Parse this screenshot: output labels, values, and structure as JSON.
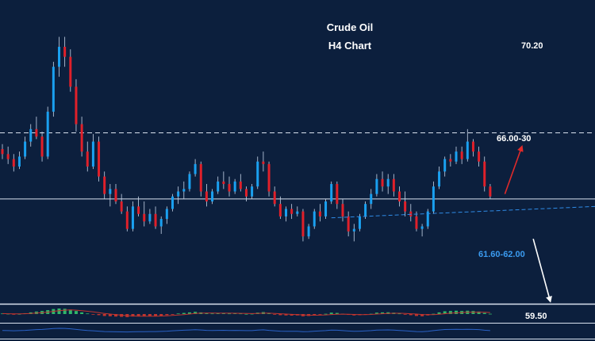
{
  "chart_data": {
    "type": "candlestick",
    "title": "Crude Oil",
    "subtitle": "H4 Chart",
    "colors": {
      "background": "#0c1f3d",
      "bullish": "#1aa0f0",
      "bearish": "#e0202a",
      "wick": "#c8d6ea",
      "reference_line": "#d9e2ef",
      "trendline": "#2f8be6",
      "arrow_up": "#e02a2a",
      "arrow_down": "#ffffff",
      "text": "#ffffff",
      "support_text": "#3b9bf0",
      "osc_green": "#2fb66a",
      "osc_red": "#c0352f",
      "osc_line": "#2a62c7"
    },
    "y_range": [
      59.3,
      71.0
    ],
    "levels": [
      {
        "label": "70.20",
        "value": 70.2,
        "line": false
      },
      {
        "label": "66.00-30",
        "value": 66.15,
        "line": true,
        "style": "dashed"
      },
      {
        "label": "",
        "value": 63.5,
        "line": true,
        "style": "solid"
      },
      {
        "label": "59.50",
        "value": 59.5,
        "line": false
      }
    ],
    "support_label": "61.60-62.00",
    "trendline": {
      "from": [
        0,
        62.1
      ],
      "to": [
        99,
        63.2
      ]
    },
    "arrows": [
      {
        "direction": "up",
        "from": [
          76,
          63.7
        ],
        "to": [
          79,
          65.6
        ]
      },
      {
        "direction": "down",
        "from": [
          81,
          61.9
        ],
        "to": [
          84,
          59.4
        ]
      }
    ],
    "candles": [
      [
        65.5,
        65.7,
        65.1,
        65.3
      ],
      [
        65.3,
        65.6,
        64.9,
        65.1
      ],
      [
        65.1,
        65.3,
        64.6,
        64.8
      ],
      [
        64.8,
        65.4,
        64.7,
        65.2
      ],
      [
        65.2,
        66.0,
        65.1,
        65.8
      ],
      [
        65.8,
        66.5,
        65.6,
        66.3
      ],
      [
        66.3,
        66.8,
        65.9,
        66.0
      ],
      [
        66.0,
        66.2,
        65.0,
        65.2
      ],
      [
        65.2,
        67.2,
        65.1,
        67.0
      ],
      [
        67.0,
        69.0,
        66.8,
        68.8
      ],
      [
        68.8,
        70.0,
        68.4,
        69.6
      ],
      [
        69.6,
        70.0,
        68.8,
        69.2
      ],
      [
        69.2,
        69.5,
        67.8,
        68.0
      ],
      [
        68.0,
        68.3,
        66.2,
        66.5
      ],
      [
        66.5,
        66.8,
        65.2,
        65.4
      ],
      [
        65.4,
        65.8,
        64.6,
        64.8
      ],
      [
        64.8,
        66.1,
        64.7,
        65.8
      ],
      [
        65.8,
        66.0,
        64.2,
        64.4
      ],
      [
        64.4,
        64.6,
        63.5,
        63.7
      ],
      [
        63.7,
        64.1,
        63.2,
        63.9
      ],
      [
        63.9,
        64.1,
        63.3,
        63.4
      ],
      [
        63.4,
        63.7,
        62.9,
        63.0
      ],
      [
        63.0,
        63.2,
        62.2,
        62.3
      ],
      [
        62.3,
        63.4,
        62.2,
        63.2
      ],
      [
        63.2,
        63.6,
        62.8,
        62.9
      ],
      [
        62.9,
        63.4,
        62.4,
        62.6
      ],
      [
        62.6,
        63.1,
        62.5,
        62.9
      ],
      [
        62.9,
        63.2,
        62.3,
        62.4
      ],
      [
        62.4,
        62.8,
        62.1,
        62.7
      ],
      [
        62.7,
        63.2,
        62.5,
        63.1
      ],
      [
        63.1,
        63.7,
        63.0,
        63.6
      ],
      [
        63.6,
        64.0,
        63.3,
        63.8
      ],
      [
        63.8,
        64.2,
        63.5,
        63.9
      ],
      [
        63.9,
        64.6,
        63.8,
        64.5
      ],
      [
        64.5,
        65.1,
        64.4,
        64.9
      ],
      [
        64.9,
        65.0,
        63.6,
        63.8
      ],
      [
        63.8,
        64.1,
        63.2,
        63.4
      ],
      [
        63.4,
        63.9,
        63.3,
        63.8
      ],
      [
        63.8,
        64.4,
        63.7,
        64.2
      ],
      [
        64.2,
        64.6,
        63.9,
        64.1
      ],
      [
        64.1,
        64.4,
        63.6,
        63.8
      ],
      [
        63.8,
        64.3,
        63.7,
        64.2
      ],
      [
        64.2,
        64.5,
        63.8,
        63.9
      ],
      [
        63.9,
        64.0,
        63.4,
        63.6
      ],
      [
        63.6,
        64.1,
        63.5,
        64.0
      ],
      [
        64.0,
        65.2,
        63.9,
        65.0
      ],
      [
        65.0,
        65.4,
        64.6,
        64.9
      ],
      [
        64.9,
        65.0,
        63.6,
        63.8
      ],
      [
        63.8,
        64.0,
        63.2,
        63.3
      ],
      [
        63.3,
        63.6,
        62.7,
        62.8
      ],
      [
        62.8,
        63.2,
        62.6,
        63.1
      ],
      [
        63.1,
        63.3,
        62.7,
        62.9
      ],
      [
        62.9,
        63.2,
        62.8,
        63.0
      ],
      [
        63.0,
        63.1,
        61.8,
        62.0
      ],
      [
        62.0,
        62.5,
        61.9,
        62.4
      ],
      [
        62.4,
        63.1,
        62.3,
        63.0
      ],
      [
        63.0,
        63.3,
        62.6,
        62.8
      ],
      [
        62.8,
        63.5,
        62.7,
        63.4
      ],
      [
        63.4,
        64.2,
        63.3,
        64.1
      ],
      [
        64.1,
        64.2,
        63.1,
        63.3
      ],
      [
        63.3,
        63.5,
        62.6,
        62.8
      ],
      [
        62.8,
        63.0,
        62.0,
        62.2
      ],
      [
        62.2,
        62.5,
        61.8,
        62.3
      ],
      [
        62.3,
        62.9,
        62.2,
        62.8
      ],
      [
        62.8,
        63.4,
        62.7,
        63.3
      ],
      [
        63.3,
        63.9,
        63.1,
        63.7
      ],
      [
        63.7,
        64.5,
        63.6,
        64.3
      ],
      [
        64.3,
        64.6,
        63.8,
        64.0
      ],
      [
        64.0,
        64.5,
        63.7,
        64.3
      ],
      [
        64.3,
        64.5,
        63.6,
        63.8
      ],
      [
        63.8,
        64.0,
        63.2,
        63.4
      ],
      [
        63.4,
        63.8,
        62.8,
        63.0
      ],
      [
        63.0,
        63.3,
        62.6,
        62.8
      ],
      [
        62.8,
        63.0,
        62.2,
        62.3
      ],
      [
        62.3,
        62.5,
        62.0,
        62.4
      ],
      [
        62.4,
        63.1,
        62.3,
        63.0
      ],
      [
        63.0,
        64.2,
        62.9,
        64.0
      ],
      [
        64.0,
        64.8,
        63.9,
        64.6
      ],
      [
        64.6,
        65.2,
        64.4,
        65.1
      ],
      [
        65.1,
        65.3,
        64.8,
        65.0
      ],
      [
        65.0,
        65.6,
        64.9,
        65.4
      ],
      [
        65.4,
        65.6,
        64.9,
        65.1
      ],
      [
        65.1,
        66.3,
        65.0,
        65.8
      ],
      [
        65.8,
        65.9,
        65.2,
        65.4
      ],
      [
        65.4,
        65.6,
        64.8,
        65.0
      ],
      [
        65.0,
        65.2,
        63.8,
        64.0
      ],
      [
        64.0,
        64.1,
        63.5,
        63.6
      ]
    ],
    "oscillator": [
      [
        0.1,
        0.08
      ],
      [
        0.05,
        0.06
      ],
      [
        -0.05,
        0.04
      ],
      [
        0.02,
        0.03
      ],
      [
        0.15,
        0.05
      ],
      [
        0.3,
        0.1
      ],
      [
        0.45,
        0.18
      ],
      [
        0.55,
        0.26
      ],
      [
        0.7,
        0.35
      ],
      [
        0.9,
        0.48
      ],
      [
        1.0,
        0.6
      ],
      [
        0.95,
        0.7
      ],
      [
        0.8,
        0.74
      ],
      [
        0.55,
        0.7
      ],
      [
        0.3,
        0.62
      ],
      [
        0.1,
        0.5
      ],
      [
        -0.05,
        0.38
      ],
      [
        -0.2,
        0.25
      ],
      [
        -0.35,
        0.12
      ],
      [
        -0.4,
        0.0
      ],
      [
        -0.45,
        -0.1
      ],
      [
        -0.5,
        -0.2
      ],
      [
        -0.55,
        -0.3
      ],
      [
        -0.45,
        -0.35
      ],
      [
        -0.4,
        -0.38
      ],
      [
        -0.4,
        -0.4
      ],
      [
        -0.35,
        -0.4
      ],
      [
        -0.35,
        -0.38
      ],
      [
        -0.3,
        -0.36
      ],
      [
        -0.2,
        -0.32
      ],
      [
        -0.05,
        -0.26
      ],
      [
        0.1,
        -0.18
      ],
      [
        0.2,
        -0.1
      ],
      [
        0.3,
        0.0
      ],
      [
        0.4,
        0.1
      ],
      [
        0.3,
        0.16
      ],
      [
        0.15,
        0.18
      ],
      [
        0.1,
        0.17
      ],
      [
        0.15,
        0.16
      ],
      [
        0.18,
        0.16
      ],
      [
        0.1,
        0.15
      ],
      [
        0.12,
        0.14
      ],
      [
        0.1,
        0.13
      ],
      [
        0.02,
        0.11
      ],
      [
        0.05,
        0.09
      ],
      [
        0.25,
        0.11
      ],
      [
        0.35,
        0.15
      ],
      [
        0.15,
        0.16
      ],
      [
        -0.05,
        0.12
      ],
      [
        -0.2,
        0.06
      ],
      [
        -0.25,
        0.0
      ],
      [
        -0.28,
        -0.06
      ],
      [
        -0.25,
        -0.1
      ],
      [
        -0.4,
        -0.16
      ],
      [
        -0.35,
        -0.2
      ],
      [
        -0.2,
        -0.22
      ],
      [
        -0.1,
        -0.2
      ],
      [
        0.05,
        -0.16
      ],
      [
        0.25,
        -0.08
      ],
      [
        0.2,
        -0.03
      ],
      [
        0.05,
        -0.01
      ],
      [
        -0.15,
        -0.03
      ],
      [
        -0.25,
        -0.07
      ],
      [
        -0.2,
        -0.1
      ],
      [
        -0.1,
        -0.1
      ],
      [
        0.05,
        -0.07
      ],
      [
        0.25,
        0.0
      ],
      [
        0.3,
        0.06
      ],
      [
        0.32,
        0.11
      ],
      [
        0.25,
        0.14
      ],
      [
        0.1,
        0.14
      ],
      [
        -0.05,
        0.11
      ],
      [
        -0.2,
        0.06
      ],
      [
        -0.35,
        0.0
      ],
      [
        -0.4,
        -0.08
      ],
      [
        -0.25,
        -0.12
      ],
      [
        0.05,
        -0.1
      ],
      [
        0.3,
        -0.03
      ],
      [
        0.5,
        0.06
      ],
      [
        0.55,
        0.15
      ],
      [
        0.6,
        0.22
      ],
      [
        0.55,
        0.27
      ],
      [
        0.6,
        0.31
      ],
      [
        0.55,
        0.33
      ],
      [
        0.45,
        0.34
      ],
      [
        0.2,
        0.32
      ],
      [
        0.05,
        0.27
      ]
    ]
  }
}
